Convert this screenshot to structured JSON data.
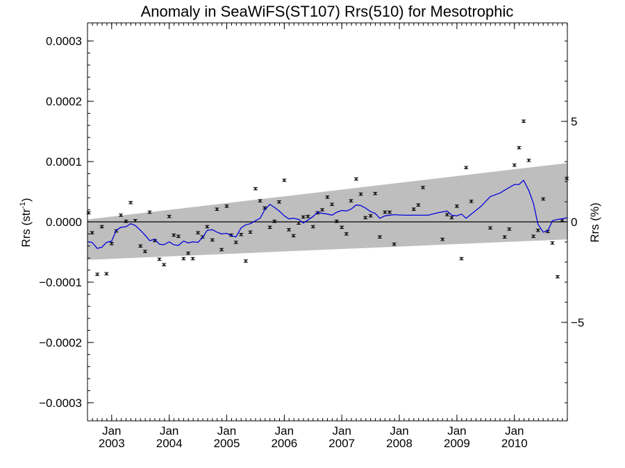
{
  "chart_data": {
    "type": "scatter",
    "title": "Anomaly in SeaWiFS(ST107) Rrs(510) for Mesotrophic",
    "ylabel_left": "Rrs (str",
    "ylabel_left_sup": "-1",
    "ylabel_left_close": ")",
    "ylabel_right": "Rrs (%)",
    "xlim": [
      2002.58,
      2010.92
    ],
    "ylim": [
      -0.00033,
      0.00033
    ],
    "right_ylim": [
      -9.9,
      9.9
    ],
    "grid": false,
    "yticks_left": [
      {
        "v": 0.0003,
        "label": "0.0003"
      },
      {
        "v": 0.0002,
        "label": "0.0002"
      },
      {
        "v": 0.0001,
        "label": "0.0001"
      },
      {
        "v": 0.0,
        "label": "0.0000"
      },
      {
        "v": -0.0001,
        "label": "−0.0001"
      },
      {
        "v": -0.0002,
        "label": "−0.0002"
      },
      {
        "v": -0.0003,
        "label": "−0.0003"
      }
    ],
    "yticks_right": [
      {
        "v": 5,
        "label": "5"
      },
      {
        "v": 0,
        "label": "0"
      },
      {
        "v": -5,
        "label": "−5"
      }
    ],
    "xticks": [
      {
        "v": 2003.0,
        "month": "Jan",
        "year": "2003"
      },
      {
        "v": 2004.0,
        "month": "Jan",
        "year": "2004"
      },
      {
        "v": 2005.0,
        "month": "Jan",
        "year": "2005"
      },
      {
        "v": 2006.0,
        "month": "Jan",
        "year": "2006"
      },
      {
        "v": 2007.0,
        "month": "Jan",
        "year": "2007"
      },
      {
        "v": 2008.0,
        "month": "Jan",
        "year": "2008"
      },
      {
        "v": 2009.0,
        "month": "Jan",
        "year": "2009"
      },
      {
        "v": 2010.0,
        "month": "Jan",
        "year": "2010"
      }
    ],
    "band": {
      "upper": [
        [
          2002.58,
          4e-06
        ],
        [
          2010.92,
          9.75e-05
        ]
      ],
      "lower": [
        [
          2002.58,
          -6.3e-05
        ],
        [
          2010.92,
          -2.9e-05
        ]
      ],
      "color": "#bebebe"
    },
    "series": [
      {
        "type": "scatter_errorbars",
        "color": "#000000",
        "x": [
          2002.6,
          2002.66,
          2002.75,
          2002.83,
          2002.91,
          2003.0,
          2003.08,
          2003.16,
          2003.25,
          2003.33,
          2003.41,
          2003.5,
          2003.58,
          2003.66,
          2003.75,
          2003.83,
          2003.91,
          2004.0,
          2004.08,
          2004.16,
          2004.25,
          2004.33,
          2004.41,
          2004.5,
          2004.58,
          2004.66,
          2004.75,
          2004.83,
          2004.91,
          2005.0,
          2005.08,
          2005.16,
          2005.25,
          2005.33,
          2005.41,
          2005.5,
          2005.58,
          2005.66,
          2005.75,
          2005.83,
          2005.91,
          2006.0,
          2006.08,
          2006.16,
          2006.25,
          2006.33,
          2006.41,
          2006.5,
          2006.58,
          2006.66,
          2006.75,
          2006.83,
          2006.91,
          2007.0,
          2007.08,
          2007.16,
          2007.25,
          2007.33,
          2007.41,
          2007.5,
          2007.58,
          2007.66,
          2007.75,
          2007.83,
          2007.91,
          2008.25,
          2008.33,
          2008.41,
          2008.75,
          2008.83,
          2008.91,
          2009.0,
          2009.08,
          2009.16,
          2009.25,
          2009.58,
          2009.83,
          2009.91,
          2010.0,
          2010.08,
          2010.16,
          2010.25,
          2010.33,
          2010.41,
          2010.5,
          2010.58,
          2010.66,
          2010.75,
          2010.83,
          2010.91
        ],
        "y": [
          1.5e-05,
          -1.8e-05,
          -8.7e-05,
          -8e-06,
          -8.6e-05,
          -3.6e-05,
          -1.5e-05,
          1.1e-05,
          1e-06,
          3.2e-05,
          2e-06,
          -4e-05,
          -4.9e-05,
          1.6e-05,
          -3.1e-05,
          -6.2e-05,
          -7.1e-05,
          9e-06,
          -2.2e-05,
          -2.4e-05,
          -6.1e-05,
          -5.2e-05,
          -6.1e-05,
          -1.8e-05,
          -2.5e-05,
          -8e-06,
          -3e-05,
          2.1e-05,
          -4.6e-05,
          2.6e-05,
          -2.2e-05,
          -3.4e-05,
          -2.1e-05,
          -6.5e-05,
          -1.7e-05,
          5.5e-05,
          3.5e-05,
          2.3e-05,
          -9e-06,
          1e-06,
          3.3e-05,
          6.9e-05,
          -1.3e-05,
          -2.3e-05,
          -2e-06,
          8e-06,
          9e-06,
          -8e-06,
          1.5e-05,
          2e-05,
          4.1e-05,
          2.9e-05,
          1e-06,
          -9e-06,
          -2e-05,
          3.5e-05,
          7.1e-05,
          4.6e-05,
          7e-06,
          1e-05,
          4.7e-05,
          -2.5e-05,
          1.6e-05,
          1.6e-05,
          -3.7e-05,
          2.1e-05,
          2.8e-05,
          5.7e-05,
          -2.9e-05,
          1.2e-05,
          7e-06,
          2.6e-05,
          -6.1e-05,
          9e-05,
          3.4e-05,
          -1e-05,
          -2.5e-05,
          -1.2e-05,
          9.4e-05,
          0.000123,
          0.000167,
          0.000102,
          -2.4e-05,
          -1.4e-05,
          3.8e-05,
          -1.6e-05,
          -3.5e-05,
          -9.1e-05,
          3e-06,
          7.2e-05
        ],
        "err": 2e-06
      },
      {
        "type": "line",
        "color": "#0000dd",
        "x": [
          2002.58,
          2002.66,
          2002.75,
          2002.83,
          2002.91,
          2003.0,
          2003.08,
          2003.16,
          2003.25,
          2003.33,
          2003.41,
          2003.5,
          2003.58,
          2003.66,
          2003.75,
          2003.83,
          2003.91,
          2004.0,
          2004.08,
          2004.16,
          2004.25,
          2004.33,
          2004.41,
          2004.5,
          2004.58,
          2004.66,
          2004.75,
          2004.83,
          2004.91,
          2005.0,
          2005.08,
          2005.16,
          2005.25,
          2005.33,
          2005.41,
          2005.5,
          2005.58,
          2005.66,
          2005.75,
          2005.83,
          2005.91,
          2006.0,
          2006.08,
          2006.16,
          2006.25,
          2006.33,
          2006.41,
          2006.5,
          2006.58,
          2006.66,
          2006.75,
          2006.83,
          2006.91,
          2007.0,
          2007.08,
          2007.16,
          2007.25,
          2007.33,
          2007.41,
          2007.5,
          2007.58,
          2007.66,
          2007.75,
          2007.91,
          2008.08,
          2008.33,
          2008.5,
          2008.66,
          2008.83,
          2008.91,
          2009.0,
          2009.08,
          2009.16,
          2009.25,
          2009.41,
          2009.58,
          2009.75,
          2009.91,
          2010.0,
          2010.08,
          2010.16,
          2010.25,
          2010.33,
          2010.41,
          2010.5,
          2010.58,
          2010.66,
          2010.75,
          2010.83,
          2010.92
        ],
        "y": [
          -3.3e-05,
          -3.4e-05,
          -4.4e-05,
          -4.2e-05,
          -3.4e-05,
          -3.2e-05,
          -1.4e-05,
          -9e-06,
          -8e-06,
          -3e-06,
          -6e-06,
          -1.4e-05,
          -2.2e-05,
          -3.1e-05,
          -2.9e-05,
          -3.7e-05,
          -3.8e-05,
          -3.3e-05,
          -3.8e-05,
          -3.9e-05,
          -3.2e-05,
          -3.5e-05,
          -3.3e-05,
          -3.4e-05,
          -2.6e-05,
          -1.4e-05,
          -1.3e-05,
          -1.7e-05,
          -2e-05,
          -1.9e-05,
          -2.3e-05,
          -2.5e-05,
          -1e-05,
          -5e-06,
          -3e-06,
          2e-06,
          6e-06,
          2e-05,
          2.9e-05,
          2.4e-05,
          1.8e-05,
          1e-05,
          5e-06,
          6e-06,
          4e-06,
          -2e-06,
          3e-06,
          9e-06,
          1.6e-05,
          1.4e-05,
          1.3e-05,
          1.1e-05,
          1.6e-05,
          1.9e-05,
          1.8e-05,
          2.1e-05,
          2.8e-05,
          2.7e-05,
          2.3e-05,
          1.7e-05,
          1.4e-05,
          6e-06,
          1e-05,
          1.2e-05,
          1.1e-05,
          1.1e-05,
          1.1e-05,
          1.5e-05,
          1.8e-05,
          1.1e-05,
          1e-05,
          1.3e-05,
          6e-06,
          1.3e-05,
          2.5e-05,
          4.2e-05,
          4.8e-05,
          5.7e-05,
          6.2e-05,
          6.2e-05,
          6.9e-05,
          5.2e-05,
          3.1e-05,
          -4e-06,
          -1.7e-05,
          -1.5e-05,
          2e-06,
          4e-06,
          5e-06,
          7e-06
        ]
      }
    ],
    "zero_line": 0
  }
}
